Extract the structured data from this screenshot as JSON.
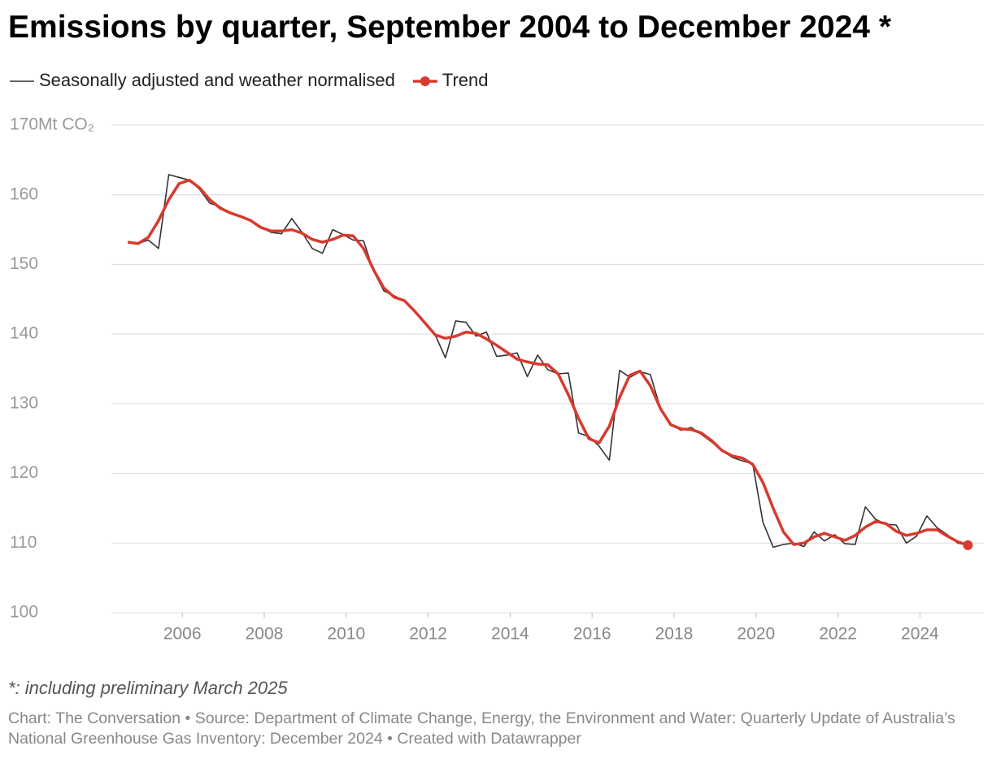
{
  "chart_data": {
    "type": "line",
    "title": "Emissions by quarter, September 2004 to December 2024 *",
    "footnote": "*: including preliminary March 2025",
    "source": "Chart: The Conversation • Source: Department of Climate Change, Energy, the Environment and Water: Quarterly Update of Australia’s National Greenhouse Gas Inventory: December 2024 • Created with Datawrapper",
    "x": [
      2004.67,
      2004.92,
      2005.17,
      2005.42,
      2005.67,
      2005.92,
      2006.17,
      2006.42,
      2006.67,
      2006.92,
      2007.17,
      2007.42,
      2007.67,
      2007.92,
      2008.17,
      2008.42,
      2008.67,
      2008.92,
      2009.17,
      2009.42,
      2009.67,
      2009.92,
      2010.17,
      2010.42,
      2010.67,
      2010.92,
      2011.17,
      2011.42,
      2011.67,
      2011.92,
      2012.17,
      2012.42,
      2012.67,
      2012.92,
      2013.17,
      2013.42,
      2013.67,
      2013.92,
      2014.17,
      2014.42,
      2014.67,
      2014.92,
      2015.17,
      2015.42,
      2015.67,
      2015.92,
      2016.17,
      2016.42,
      2016.67,
      2016.92,
      2017.17,
      2017.42,
      2017.67,
      2017.92,
      2018.17,
      2018.42,
      2018.67,
      2018.92,
      2019.17,
      2019.42,
      2019.67,
      2019.92,
      2020.17,
      2020.42,
      2020.67,
      2020.92,
      2021.17,
      2021.42,
      2021.67,
      2021.92,
      2022.17,
      2022.42,
      2022.67,
      2022.92,
      2023.17,
      2023.42,
      2023.67,
      2023.92,
      2024.17,
      2024.42,
      2024.67,
      2024.92,
      2025.17
    ],
    "series": [
      {
        "name": "Seasonally adjusted and weather normalised",
        "color": "#333333",
        "width": 1.6,
        "values": [
          153.2,
          153.0,
          153.5,
          152.3,
          162.9,
          162.5,
          162.1,
          160.8,
          158.8,
          158.3,
          157.3,
          156.9,
          156.3,
          155.3,
          154.6,
          154.4,
          156.6,
          154.6,
          152.3,
          151.6,
          155.0,
          154.3,
          153.5,
          153.4,
          149.0,
          146.2,
          145.5,
          144.8,
          143.3,
          141.6,
          139.9,
          136.6,
          141.9,
          141.7,
          139.7,
          140.3,
          136.8,
          137.0,
          137.3,
          133.9,
          137.0,
          134.9,
          134.3,
          134.4,
          125.8,
          125.3,
          123.9,
          121.9,
          134.8,
          133.8,
          134.6,
          134.2,
          129.3,
          127.0,
          126.2,
          126.6,
          125.6,
          124.5,
          123.3,
          122.3,
          121.8,
          121.4,
          113.0,
          109.4,
          109.8,
          110.0,
          109.5,
          111.6,
          110.3,
          111.2,
          109.9,
          109.8,
          115.2,
          113.4,
          112.7,
          112.6,
          110.0,
          111.0,
          113.9,
          112.2,
          111.2,
          110.0,
          109.7
        ]
      },
      {
        "name": "Trend",
        "color": "#d83a2e",
        "width": 3.5,
        "end_marker": true,
        "values": [
          153.2,
          153.0,
          153.9,
          156.3,
          159.3,
          161.6,
          162.1,
          161.0,
          159.3,
          158.1,
          157.4,
          156.9,
          156.3,
          155.3,
          154.8,
          154.8,
          155.0,
          154.5,
          153.6,
          153.2,
          153.6,
          154.2,
          154.1,
          152.3,
          149.2,
          146.6,
          145.3,
          144.8,
          143.3,
          141.6,
          139.9,
          139.4,
          139.7,
          140.3,
          140.1,
          139.3,
          138.4,
          137.4,
          136.4,
          136.0,
          135.7,
          135.6,
          134.3,
          131.3,
          127.9,
          125.0,
          124.4,
          126.8,
          130.9,
          134.1,
          134.7,
          132.6,
          129.3,
          127.0,
          126.4,
          126.3,
          125.8,
          124.7,
          123.3,
          122.5,
          122.2,
          121.3,
          118.7,
          115.0,
          111.6,
          109.8,
          110.0,
          110.9,
          111.4,
          110.9,
          110.4,
          111.1,
          112.3,
          113.1,
          112.8,
          111.7,
          111.1,
          111.4,
          111.9,
          111.9,
          111.0,
          110.2,
          109.7
        ]
      }
    ],
    "xlim": [
      2004.27,
      2025.56
    ],
    "xticks": [
      2006,
      2008,
      2010,
      2012,
      2014,
      2016,
      2018,
      2020,
      2022,
      2024
    ],
    "ylim": [
      100,
      170
    ],
    "yticks": [
      100,
      110,
      120,
      130,
      140,
      150,
      160,
      {
        "value": 170,
        "label": "170Mt CO₂"
      }
    ],
    "grid": true
  }
}
